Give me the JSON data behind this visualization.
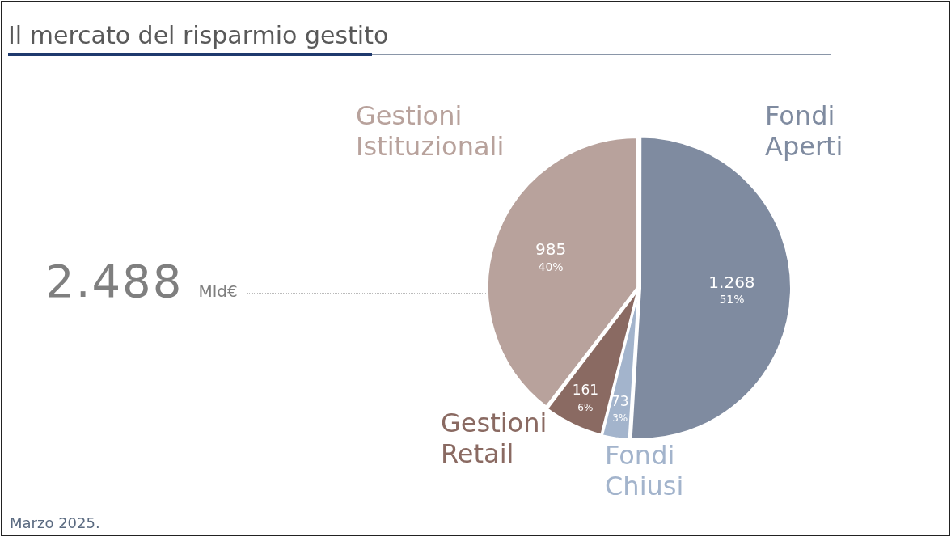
{
  "chart_data": {
    "type": "pie",
    "title": "Il mercato del risparmio gestito",
    "categories": [
      "Fondi Aperti",
      "Fondi Chiusi",
      "Gestioni Retail",
      "Gestioni Istituzionali"
    ],
    "values": [
      1268,
      73,
      161,
      985
    ],
    "colors": [
      "#7f8ba0",
      "#a3b4cc",
      "#8a6a62",
      "#b8a29c"
    ],
    "value_labels": [
      "1.268\n51%",
      "73\n3%",
      "161\n6%",
      "985\n40%"
    ],
    "annotations": [
      "2.488 Mld€",
      "Marzo 2025."
    ]
  }
}
